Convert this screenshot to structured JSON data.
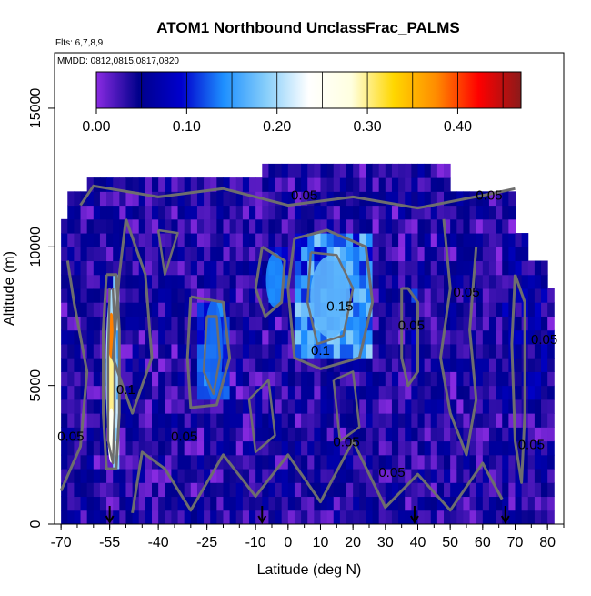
{
  "chart_data": {
    "type": "heatmap",
    "title": "ATOM1 Northbound UnclassFrac_PALMS",
    "subtitle_flights": "Flts: 6,7,8,9",
    "subtitle_dates": "MMDD: 0812,0815,0817,0820",
    "xlabel": "Latitude (deg N)",
    "ylabel": "Altitude (m)",
    "xlim": [
      -72,
      85
    ],
    "ylim": [
      0,
      17000
    ],
    "x_ticks": [
      "-70",
      "-55",
      "-40",
      "-25",
      "-10",
      "0",
      "10",
      "20",
      "30",
      "40",
      "50",
      "60",
      "70",
      "80"
    ],
    "x_tick_values": [
      -70,
      -55,
      -40,
      -25,
      -10,
      0,
      10,
      20,
      30,
      40,
      50,
      60,
      70,
      80
    ],
    "y_ticks": [
      "0",
      "5000",
      "10000",
      "15000"
    ],
    "y_tick_values": [
      0,
      5000,
      10000,
      15000
    ],
    "colorbar": {
      "range": [
        0,
        0.47
      ],
      "tick_labels": [
        "0.00",
        "0.10",
        "0.20",
        "0.30",
        "0.40"
      ],
      "tick_values": [
        0,
        0.1,
        0.2,
        0.3,
        0.4
      ],
      "colors": [
        "#8a2be2",
        "#00008b",
        "#0000cd",
        "#1e90ff",
        "#87cefa",
        "#ffffff",
        "#ffffe0",
        "#ffd700",
        "#ff8c00",
        "#ff0000",
        "#8b1a1a"
      ]
    },
    "contour_labels": [
      {
        "text": "0.05",
        "x": 5,
        "y": 11700
      },
      {
        "text": "0.05",
        "x": 62,
        "y": 11700
      },
      {
        "text": "0.05",
        "x": 55,
        "y": 8200
      },
      {
        "text": "0.05",
        "x": 38,
        "y": 7000
      },
      {
        "text": "0.05",
        "x": 18,
        "y": 2800
      },
      {
        "text": "0.05",
        "x": 32,
        "y": 1700
      },
      {
        "text": "0.05",
        "x": -32,
        "y": 3000
      },
      {
        "text": "0.05",
        "x": -67,
        "y": 3000
      },
      {
        "text": "0.1",
        "x": -50,
        "y": 4700
      },
      {
        "text": "0.1",
        "x": 10,
        "y": 6100
      },
      {
        "text": "0.15",
        "x": 16,
        "y": 7700
      },
      {
        "text": "0.05",
        "x": 79,
        "y": 6500
      },
      {
        "text": "0.05",
        "x": 75,
        "y": 2700
      }
    ],
    "flight_markers_x": [
      -55,
      -8,
      39,
      67
    ]
  }
}
